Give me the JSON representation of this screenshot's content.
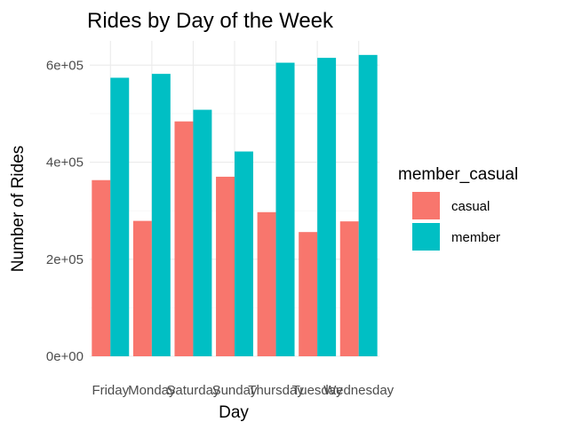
{
  "chart_data": {
    "type": "bar",
    "title": "Rides by Day of the Week",
    "xlabel": "Day",
    "ylabel": "Number of Rides",
    "categories": [
      "Friday",
      "Monday",
      "Saturday",
      "Sunday",
      "Thursday",
      "Tuesday",
      "Wednesday"
    ],
    "series": [
      {
        "name": "casual",
        "color": "#F8766D",
        "values": [
          363000,
          279000,
          484000,
          370000,
          297000,
          256000,
          278000
        ]
      },
      {
        "name": "member",
        "color": "#00BFC4",
        "values": [
          574000,
          582000,
          508000,
          422000,
          605000,
          615000,
          621000
        ]
      }
    ],
    "ylim": [
      0,
      650000
    ],
    "yticks": [
      0,
      200000,
      400000,
      600000
    ],
    "ytick_labels": [
      "0e+00",
      "2e+05",
      "4e+05",
      "6e+05"
    ],
    "legend": {
      "title": "member_casual",
      "position": "right"
    },
    "grid": true
  }
}
